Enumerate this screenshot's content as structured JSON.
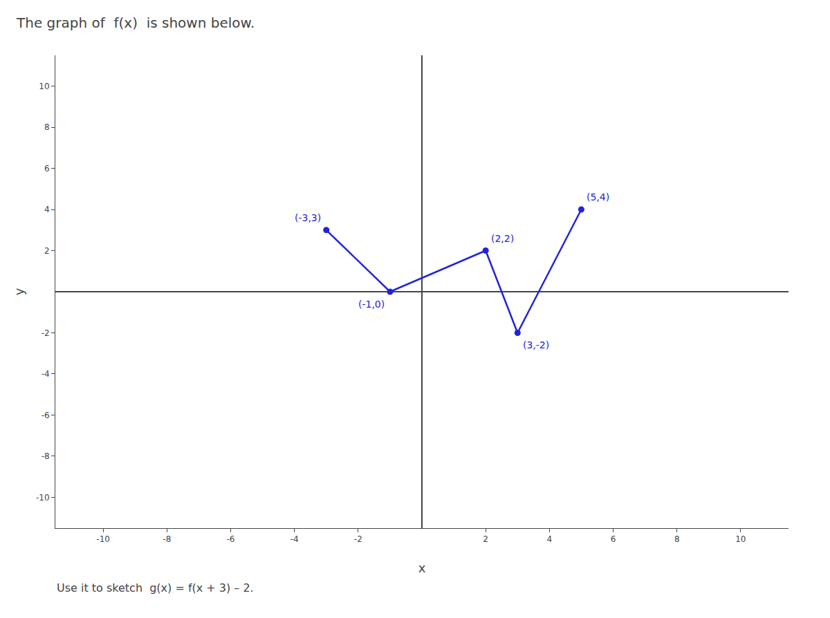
{
  "chart_data": {
    "type": "line",
    "title": "The graph of  f(x)  is shown below.",
    "subtitle": "Use it to sketch  g(x) = f(x + 3) – 2.",
    "x": [
      -3,
      -1,
      2,
      3,
      5
    ],
    "values": [
      3,
      0,
      2,
      -2,
      4
    ],
    "color": "#2222dd",
    "marker": "circle",
    "line_style": "solid",
    "annotations": [
      {
        "x": -3,
        "y": 3,
        "text": "(-3,3)"
      },
      {
        "x": -1,
        "y": 0,
        "text": "(-1,0)"
      },
      {
        "x": 2,
        "y": 2,
        "text": "(2,2)"
      },
      {
        "x": 3,
        "y": -2,
        "text": "(3,-2)"
      },
      {
        "x": 5,
        "y": 4,
        "text": "(5,4)"
      }
    ],
    "xlabel": "x",
    "ylabel": "y",
    "xlim": [
      -11.5,
      11.5
    ],
    "ylim": [
      -11.5,
      11.5
    ],
    "xticks": [
      -10,
      -8,
      -6,
      -4,
      -2,
      2,
      4,
      6,
      8,
      10
    ],
    "yticks": [
      -10,
      -8,
      -6,
      -4,
      -2,
      2,
      4,
      6,
      8,
      10
    ],
    "grid": false
  }
}
